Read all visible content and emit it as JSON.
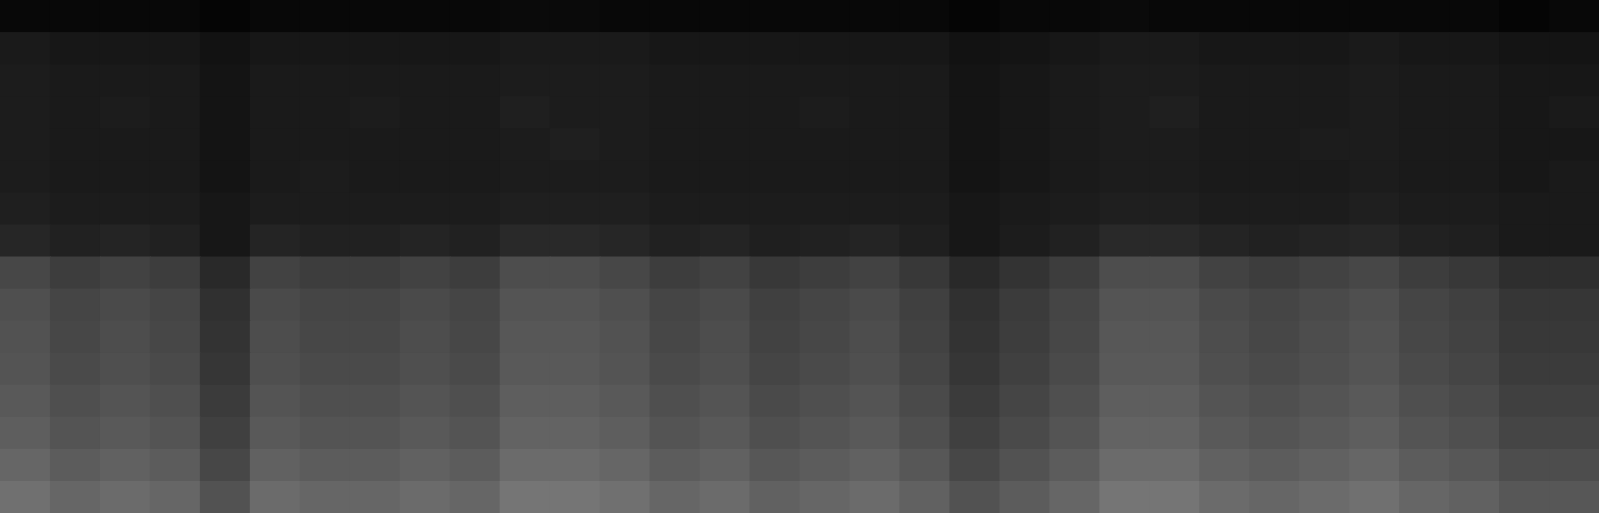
{
  "chart_data": {
    "type": "heatmap",
    "tick_labels": false,
    "grid": false,
    "cells": [
      [
        3,
        3,
        3,
        3,
        2,
        3,
        3,
        3,
        3,
        3,
        4,
        4,
        3,
        3,
        3,
        3,
        3,
        3,
        3,
        2,
        3,
        3,
        4,
        3,
        3,
        3,
        3,
        3,
        3,
        3,
        2,
        3
      ],
      [
        10,
        9,
        9,
        9,
        7,
        9,
        9,
        9,
        9,
        9,
        10,
        10,
        10,
        9,
        9,
        9,
        9,
        9,
        9,
        7,
        8,
        9,
        10,
        10,
        9,
        9,
        9,
        10,
        9,
        9,
        8,
        8
      ],
      [
        11,
        10,
        10,
        10,
        8,
        10,
        10,
        10,
        10,
        10,
        11,
        11,
        11,
        10,
        10,
        10,
        10,
        10,
        10,
        8,
        9,
        10,
        11,
        11,
        10,
        10,
        10,
        11,
        10,
        10,
        9,
        9
      ],
      [
        11,
        10,
        11,
        10,
        8,
        10,
        10,
        11,
        10,
        10,
        12,
        11,
        11,
        10,
        10,
        10,
        11,
        10,
        10,
        8,
        9,
        10,
        11,
        12,
        10,
        10,
        10,
        11,
        10,
        10,
        9,
        10
      ],
      [
        11,
        10,
        10,
        10,
        8,
        10,
        10,
        10,
        10,
        10,
        11,
        12,
        11,
        10,
        10,
        10,
        10,
        10,
        10,
        8,
        9,
        10,
        11,
        11,
        10,
        10,
        11,
        11,
        10,
        10,
        9,
        9
      ],
      [
        11,
        10,
        10,
        10,
        8,
        10,
        11,
        10,
        10,
        10,
        11,
        11,
        11,
        10,
        10,
        10,
        10,
        10,
        10,
        8,
        9,
        10,
        11,
        11,
        10,
        10,
        10,
        11,
        10,
        10,
        9,
        10
      ],
      [
        12,
        11,
        11,
        11,
        9,
        11,
        11,
        11,
        11,
        11,
        12,
        12,
        12,
        11,
        11,
        11,
        11,
        11,
        11,
        9,
        10,
        11,
        12,
        12,
        11,
        11,
        11,
        12,
        11,
        11,
        10,
        10
      ],
      [
        15,
        13,
        14,
        13,
        9,
        14,
        13,
        13,
        14,
        13,
        16,
        16,
        15,
        13,
        14,
        12,
        13,
        14,
        12,
        9,
        11,
        13,
        16,
        16,
        14,
        13,
        14,
        15,
        13,
        12,
        10,
        10
      ],
      [
        28,
        24,
        26,
        24,
        16,
        26,
        24,
        24,
        26,
        24,
        30,
        30,
        28,
        24,
        26,
        22,
        24,
        26,
        22,
        16,
        20,
        24,
        30,
        30,
        26,
        24,
        26,
        28,
        24,
        22,
        18,
        18
      ],
      [
        31,
        27,
        29,
        27,
        19,
        29,
        27,
        27,
        29,
        27,
        33,
        33,
        31,
        27,
        29,
        25,
        27,
        29,
        25,
        19,
        23,
        27,
        33,
        33,
        29,
        27,
        29,
        31,
        27,
        25,
        21,
        21
      ],
      [
        32,
        28,
        30,
        28,
        20,
        30,
        28,
        28,
        30,
        28,
        34,
        34,
        32,
        28,
        30,
        26,
        28,
        30,
        26,
        20,
        24,
        28,
        34,
        34,
        30,
        28,
        30,
        32,
        28,
        26,
        22,
        22
      ],
      [
        33,
        29,
        31,
        29,
        21,
        31,
        29,
        29,
        31,
        29,
        35,
        35,
        33,
        29,
        31,
        27,
        29,
        31,
        27,
        21,
        25,
        29,
        35,
        35,
        31,
        29,
        31,
        33,
        29,
        27,
        23,
        23
      ],
      [
        35,
        31,
        33,
        31,
        23,
        33,
        31,
        31,
        33,
        31,
        37,
        37,
        35,
        31,
        33,
        29,
        31,
        33,
        29,
        23,
        27,
        31,
        37,
        37,
        33,
        31,
        33,
        35,
        31,
        29,
        25,
        25
      ],
      [
        37,
        33,
        35,
        33,
        25,
        35,
        33,
        33,
        35,
        33,
        39,
        39,
        37,
        33,
        35,
        31,
        33,
        35,
        31,
        25,
        29,
        33,
        39,
        39,
        35,
        33,
        35,
        37,
        33,
        31,
        27,
        27
      ],
      [
        40,
        36,
        38,
        36,
        28,
        38,
        36,
        36,
        38,
        36,
        42,
        42,
        40,
        36,
        38,
        34,
        36,
        38,
        34,
        28,
        32,
        36,
        42,
        42,
        38,
        36,
        38,
        40,
        36,
        34,
        30,
        30
      ],
      [
        44,
        40,
        42,
        40,
        32,
        42,
        40,
        40,
        42,
        40,
        46,
        46,
        44,
        40,
        42,
        38,
        40,
        42,
        38,
        32,
        36,
        40,
        46,
        46,
        42,
        40,
        42,
        44,
        40,
        38,
        34,
        34
      ]
    ]
  }
}
